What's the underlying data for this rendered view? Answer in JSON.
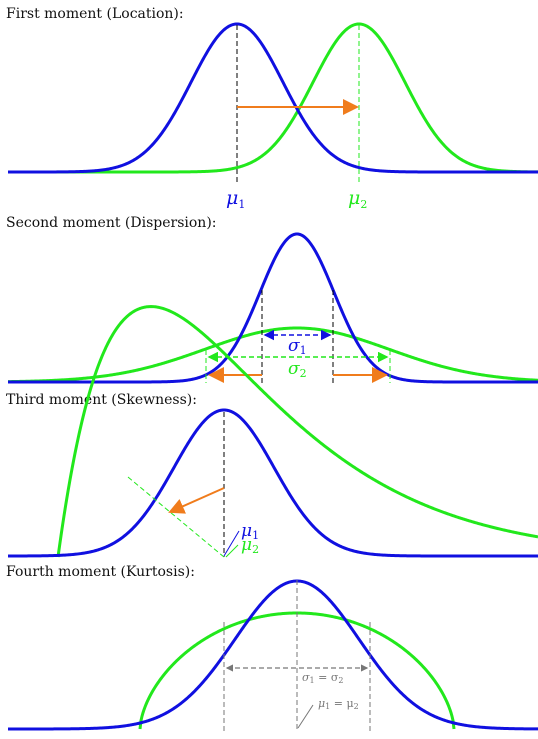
{
  "colors": {
    "blue": "#1010e0",
    "green": "#22e81c",
    "orange": "#f07c1c",
    "black": "#000000",
    "gray": "#777777"
  },
  "panels": [
    {
      "title": "First moment (Location):",
      "labels": {
        "mu1": "μ",
        "mu1_sub": "1",
        "mu2": "μ",
        "mu2_sub": "2"
      }
    },
    {
      "title": "Second moment (Dispersion):",
      "labels": {
        "sigma1": "σ",
        "sigma1_sub": "1",
        "sigma2": "σ",
        "sigma2_sub": "2"
      }
    },
    {
      "title": "Third moment (Skewness):",
      "labels": {
        "mu1": "μ",
        "mu1_sub": "1",
        "mu2": "μ",
        "mu2_sub": "2"
      }
    },
    {
      "title": "Fourth moment (Kurtosis):",
      "labels": {
        "sigma_eq": "σ",
        "sigma_eq_a": "1",
        "sigma_eq_mid": " = σ",
        "sigma_eq_b": "2",
        "mu_eq": "μ",
        "mu_eq_a": "1",
        "mu_eq_mid": " = μ",
        "mu_eq_b": "2"
      }
    }
  ]
}
